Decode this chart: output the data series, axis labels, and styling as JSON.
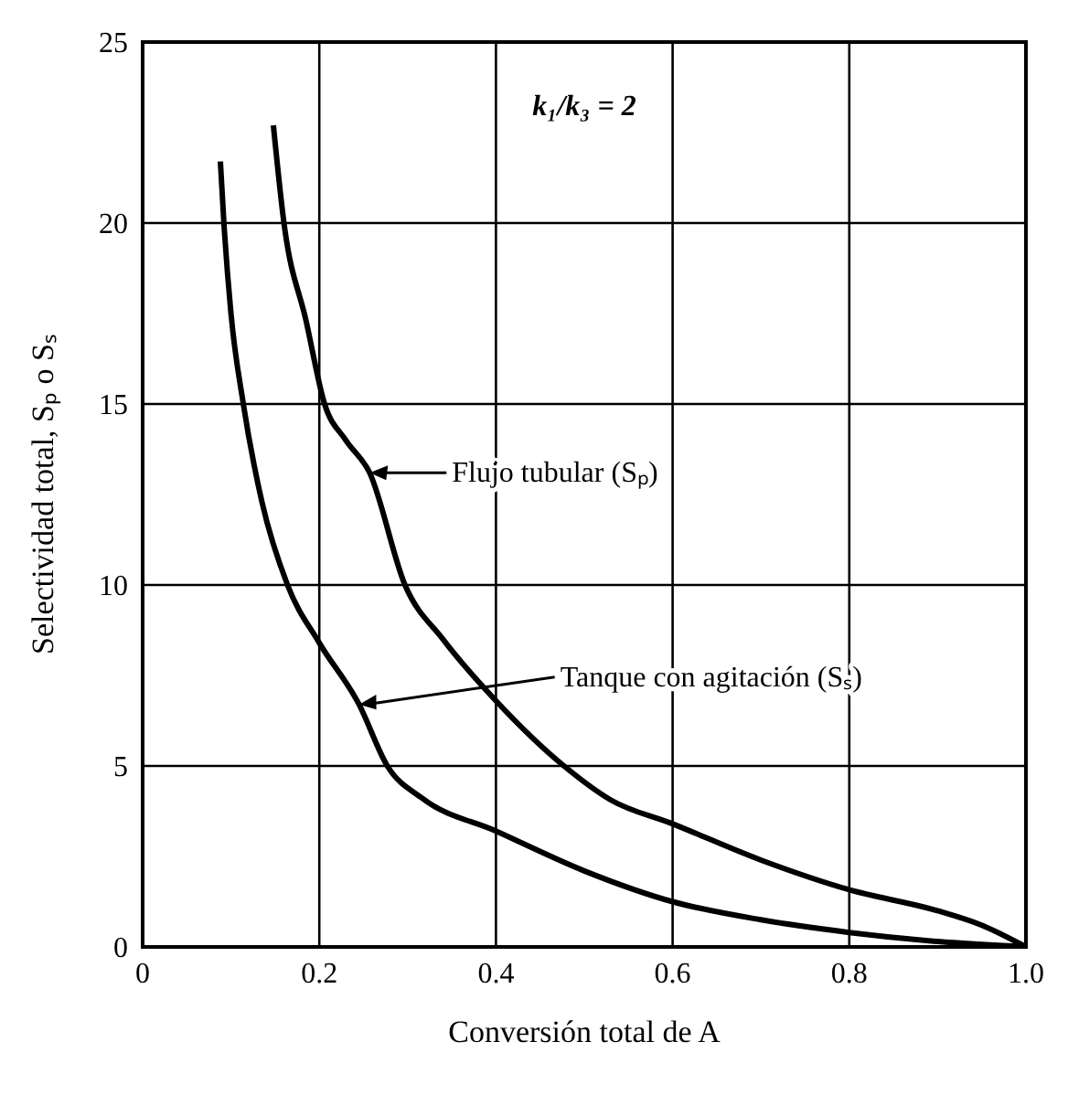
{
  "chart_data": {
    "type": "line",
    "xlabel": "Conversión total de A",
    "ylabel": "Selectividad total, Sₚ o Sₛ",
    "xlim": [
      0,
      1
    ],
    "ylim": [
      0,
      25
    ],
    "xticks": [
      0,
      0.2,
      0.4,
      0.6,
      0.8,
      {
        "value": 1,
        "label": "1.0"
      }
    ],
    "yticks": [
      0,
      5,
      10,
      15,
      20,
      25
    ],
    "grid": true,
    "marker": "none",
    "line_style": "solid",
    "series": [
      {
        "color": "#000000",
        "x": [
          0.148,
          0.16,
          0.185,
          0.206,
          0.23,
          0.257,
          0.297,
          0.34,
          0.4,
          0.477,
          0.53,
          0.6,
          0.7,
          0.8,
          0.9,
          0.95,
          1.0
        ],
        "values": [
          22.7,
          20,
          17.3,
          15,
          14,
          13.1,
          10,
          8.5,
          6.8,
          5,
          4.06,
          3.4,
          2.4,
          1.58,
          1.0,
          0.6,
          0
        ]
      },
      {
        "color": "#000000",
        "x": [
          0.088,
          0.092,
          0.1,
          0.114,
          0.135,
          0.164,
          0.2,
          0.245,
          0.277,
          0.317,
          0.4,
          0.5,
          0.6,
          0.7,
          0.8,
          0.9,
          1.0
        ],
        "values": [
          21.7,
          20,
          17.5,
          15,
          12.3,
          10,
          8.4,
          6.7,
          5,
          4.1,
          3.2,
          2.1,
          1.25,
          0.75,
          0.4,
          0.15,
          0
        ]
      }
    ],
    "annotations": [
      "k₁/k₃ = 2",
      {
        "text": "Flujo tubular (Sₚ)",
        "x": 0.257,
        "y": 13.1
      },
      {
        "text": "Tanque con agitación (Sₛ)",
        "x": 0.245,
        "y": 6.7
      }
    ]
  }
}
